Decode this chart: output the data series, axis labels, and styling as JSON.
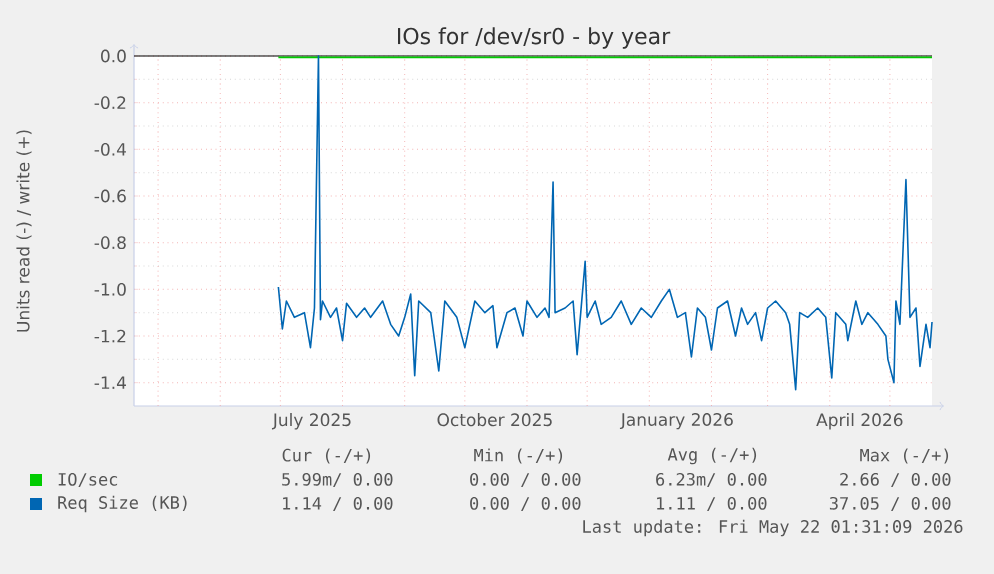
{
  "chart_data": {
    "type": "line",
    "title": "IOs for /dev/sr0 - by year",
    "ylabel": "Units read (-) / write (+)",
    "xlim": [
      "2025-04-19",
      "2026-05-22"
    ],
    "ylim": [
      -1.5,
      0.0
    ],
    "xticks": [
      {
        "value": "2025-05-01",
        "label": null
      },
      {
        "value": "2025-06-01",
        "label": null
      },
      {
        "value": "2025-07-01",
        "label": null
      },
      {
        "value": "2025-07-17",
        "label": "July 2025"
      },
      {
        "value": "2025-08-01",
        "label": null
      },
      {
        "value": "2025-09-01",
        "label": null
      },
      {
        "value": "2025-10-01",
        "label": null
      },
      {
        "value": "2025-10-16",
        "label": "October 2025"
      },
      {
        "value": "2025-11-01",
        "label": null
      },
      {
        "value": "2025-12-01",
        "label": null
      },
      {
        "value": "2026-01-01",
        "label": null
      },
      {
        "value": "2026-01-15",
        "label": "January 2026"
      },
      {
        "value": "2026-02-01",
        "label": null
      },
      {
        "value": "2026-03-01",
        "label": null
      },
      {
        "value": "2026-04-01",
        "label": null
      },
      {
        "value": "2026-04-16",
        "label": "April 2026"
      },
      {
        "value": "2026-05-01",
        "label": null
      }
    ],
    "yticks": [
      {
        "value": -1.4,
        "label": "-1.4"
      },
      {
        "value": -1.2,
        "label": "-1.2"
      },
      {
        "value": -1.0,
        "label": "-1.0"
      },
      {
        "value": -0.8,
        "label": "-0.8"
      },
      {
        "value": -0.6,
        "label": "-0.6"
      },
      {
        "value": -0.4,
        "label": "-0.4"
      },
      {
        "value": -0.2,
        "label": "-0.2"
      },
      {
        "value": 0,
        "label": "0.0"
      }
    ],
    "grid": true,
    "legend": "bottom",
    "marker": "none",
    "line_style": "solid",
    "ref_lines": [
      {
        "axis": "y",
        "value": 0,
        "color": "#000000"
      }
    ],
    "series": [
      {
        "name": "IO/sec",
        "color": "#00cc00",
        "x": [
          "2025-06-30",
          "2026-05-22"
        ],
        "values": [
          -0.006,
          -0.006
        ]
      },
      {
        "name": "Req Size (KB)",
        "color": "#0066b3",
        "x": [
          "2025-06-30",
          "2025-07-02",
          "2025-07-04",
          "2025-07-08",
          "2025-07-13",
          "2025-07-16",
          "2025-07-18",
          "2025-07-20",
          "2025-07-21",
          "2025-07-22",
          "2025-07-26",
          "2025-07-29",
          "2025-08-01",
          "2025-08-03",
          "2025-08-08",
          "2025-08-12",
          "2025-08-15",
          "2025-08-21",
          "2025-08-25",
          "2025-08-29",
          "2025-09-01",
          "2025-09-04",
          "2025-09-06",
          "2025-09-08",
          "2025-09-14",
          "2025-09-18",
          "2025-09-21",
          "2025-09-27",
          "2025-10-01",
          "2025-10-06",
          "2025-10-11",
          "2025-10-15",
          "2025-10-17",
          "2025-10-22",
          "2025-10-26",
          "2025-10-30",
          "2025-11-01",
          "2025-11-06",
          "2025-11-10",
          "2025-11-12",
          "2025-11-14",
          "2025-11-15",
          "2025-11-20",
          "2025-11-24",
          "2025-11-26",
          "2025-11-30",
          "2025-12-01",
          "2025-12-05",
          "2025-12-08",
          "2025-12-13",
          "2025-12-18",
          "2025-12-23",
          "2025-12-28",
          "2026-01-02",
          "2026-01-07",
          "2026-01-11",
          "2026-01-15",
          "2026-01-19",
          "2026-01-22",
          "2026-01-25",
          "2026-01-29",
          "2026-02-01",
          "2026-02-04",
          "2026-02-09",
          "2026-02-13",
          "2026-02-16",
          "2026-02-19",
          "2026-02-23",
          "2026-02-26",
          "2026-03-01",
          "2026-03-05",
          "2026-03-10",
          "2026-03-12",
          "2026-03-15",
          "2026-03-17",
          "2026-03-21",
          "2026-03-26",
          "2026-03-30",
          "2026-04-02",
          "2026-04-04",
          "2026-04-09",
          "2026-04-10",
          "2026-04-14",
          "2026-04-17",
          "2026-04-20",
          "2026-04-25",
          "2026-04-29",
          "2026-04-30",
          "2026-05-03",
          "2026-05-04",
          "2026-05-06",
          "2026-05-09",
          "2026-05-11",
          "2026-05-14",
          "2026-05-16",
          "2026-05-19",
          "2026-05-21",
          "2026-05-22"
        ],
        "values": [
          -0.99,
          -1.17,
          -1.05,
          -1.12,
          -1.1,
          -1.25,
          -1.08,
          0.0,
          -1.13,
          -1.05,
          -1.12,
          -1.08,
          -1.22,
          -1.06,
          -1.12,
          -1.08,
          -1.12,
          -1.05,
          -1.15,
          -1.2,
          -1.12,
          -1.02,
          -1.37,
          -1.05,
          -1.1,
          -1.35,
          -1.05,
          -1.12,
          -1.25,
          -1.05,
          -1.1,
          -1.07,
          -1.25,
          -1.1,
          -1.08,
          -1.2,
          -1.05,
          -1.12,
          -1.08,
          -1.12,
          -0.54,
          -1.1,
          -1.08,
          -1.05,
          -1.28,
          -0.88,
          -1.12,
          -1.05,
          -1.15,
          -1.12,
          -1.05,
          -1.15,
          -1.08,
          -1.12,
          -1.05,
          -1.0,
          -1.12,
          -1.1,
          -1.29,
          -1.08,
          -1.12,
          -1.26,
          -1.08,
          -1.05,
          -1.2,
          -1.08,
          -1.15,
          -1.1,
          -1.22,
          -1.08,
          -1.05,
          -1.1,
          -1.15,
          -1.43,
          -1.1,
          -1.12,
          -1.08,
          -1.12,
          -1.38,
          -1.1,
          -1.15,
          -1.22,
          -1.05,
          -1.15,
          -1.1,
          -1.15,
          -1.2,
          -1.3,
          -1.4,
          -1.05,
          -1.15,
          -0.53,
          -1.12,
          -1.08,
          -1.33,
          -1.15,
          -1.25,
          -1.14
        ]
      }
    ],
    "annotations": [
      "Cur (-/+)",
      "Min (-/+)",
      "Avg (-/+)",
      "Max (-/+)",
      "5.99m/ 0.00",
      "0.00 / 0.00",
      "6.23m/ 0.00",
      "2.66 / 0.00",
      "1.14 / 0.00",
      "0.00 / 0.00",
      "1.11 / 0.00",
      "37.05 / 0.00",
      "Last update: Fri May 22 01:31:09 2026"
    ]
  }
}
